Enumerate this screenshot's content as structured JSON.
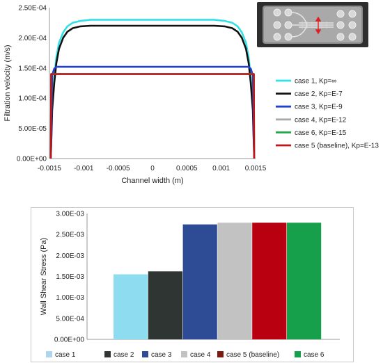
{
  "chart_data": [
    {
      "type": "line",
      "title": "",
      "xlabel": "Channel width (m)",
      "ylabel": "Filtration velocity (m/s)",
      "xlim": [
        -0.0015,
        0.0015
      ],
      "ylim": [
        0,
        0.00025
      ],
      "x_ticks": [
        -0.0015,
        -0.001,
        -0.0005,
        0,
        0.0005,
        0.001,
        0.0015
      ],
      "x_tick_labels": [
        "-0.0015",
        "-0.001",
        "-0.0005",
        "0",
        "0.0005",
        "0.001",
        "0.0015"
      ],
      "y_ticks": [
        0,
        5e-05,
        0.0001,
        0.00015,
        0.0002,
        0.00025
      ],
      "y_tick_labels": [
        "0.00E+00",
        "5.00E-05",
        "1.00E-04",
        "1.50E-04",
        "2.00E-04",
        "2.50E-04"
      ],
      "grid": false,
      "legend_position": "right",
      "series": [
        {
          "name": "case 1, Kp=∞",
          "color": "#33e0e8",
          "x": [
            -0.00148,
            -0.00146,
            -0.00143,
            -0.0014,
            -0.00136,
            -0.0013,
            -0.00124,
            -0.00116,
            -0.00105,
            -0.0009,
            -0.0006,
            0,
            0.0006,
            0.0009,
            0.00105,
            0.00116,
            0.00124,
            0.0013,
            0.00136,
            0.0014,
            0.00143,
            0.00146,
            0.00148
          ],
          "y": [
            0,
            9e-05,
            0.000135,
            0.000168,
            0.000192,
            0.000209,
            0.000219,
            0.000225,
            0.000228,
            0.00023,
            0.00023,
            0.00023,
            0.00023,
            0.00023,
            0.000228,
            0.000225,
            0.000219,
            0.000209,
            0.000192,
            0.000168,
            0.000135,
            9e-05,
            0
          ]
        },
        {
          "name": "case 2, Kp=E-7",
          "color": "#111111",
          "x": [
            -0.00148,
            -0.00146,
            -0.00143,
            -0.0014,
            -0.00136,
            -0.0013,
            -0.00124,
            -0.00116,
            -0.00105,
            -0.0009,
            -0.0006,
            0,
            0.0006,
            0.0009,
            0.00105,
            0.00116,
            0.00124,
            0.0013,
            0.00136,
            0.0014,
            0.00143,
            0.00146,
            0.00148
          ],
          "y": [
            0,
            8e-05,
            0.000125,
            0.000158,
            0.000182,
            0.0002,
            0.00021,
            0.000216,
            0.000219,
            0.00022,
            0.00022,
            0.00022,
            0.00022,
            0.00022,
            0.000219,
            0.000216,
            0.00021,
            0.0002,
            0.000182,
            0.000158,
            0.000125,
            8e-05,
            0
          ]
        },
        {
          "name": "case 3, Kp=E-9",
          "color": "#2340c8",
          "x": [
            -0.00148,
            -0.00146,
            -0.00143,
            -0.0014,
            0,
            0.0014,
            0.00143,
            0.00146,
            0.00148
          ],
          "y": [
            0,
            0.000138,
            0.000149,
            0.000152,
            0.000152,
            0.000152,
            0.000149,
            0.000138,
            0
          ]
        },
        {
          "name": "case 4, Kp=E-12",
          "color": "#aaaaaa",
          "x": [
            -0.00148,
            -0.001475,
            0,
            0.001475,
            0.00148
          ],
          "y": [
            0,
            0.00014,
            0.00014,
            0.00014,
            0
          ]
        },
        {
          "name": "case 6, Kp=E-15",
          "color": "#1faa4a",
          "x": [
            -0.00148,
            -0.001475,
            0,
            0.001475,
            0.00148
          ],
          "y": [
            0,
            0.00014,
            0.00014,
            0.00014,
            0
          ]
        },
        {
          "name": "case 5 (baseline), Kp=E-13",
          "color": "#c0141c",
          "x": [
            -0.00148,
            -0.001475,
            0,
            0.001475,
            0.00148
          ],
          "y": [
            0,
            0.00014,
            0.00014,
            0.00014,
            0
          ]
        }
      ]
    },
    {
      "type": "bar",
      "title": "",
      "xlabel": "",
      "ylabel": "Wall Shear Stress (Pa)",
      "ylim": [
        0,
        0.003
      ],
      "y_ticks": [
        0,
        0.0005,
        0.001,
        0.0015,
        0.002,
        0.0025,
        0.003
      ],
      "y_tick_labels": [
        "0.00E+00",
        "5.00E-04",
        "1.00E-03",
        "1.50E-03",
        "2.00E-03",
        "2.50E-03",
        "3.00E-03"
      ],
      "categories": [
        "case 1",
        "case 2",
        "case 3",
        "case 4",
        "case 5 (baseline)",
        "case 6"
      ],
      "values": [
        0.00155,
        0.00162,
        0.00274,
        0.00278,
        0.00278,
        0.00278
      ],
      "colors": [
        "#8ddcef",
        "#2f3532",
        "#2e4c96",
        "#c2c2c2",
        "#b80010",
        "#16a04c"
      ],
      "legend_colors": [
        "#aed4ee",
        "#2f3532",
        "#2e4c96",
        "#c2c2c2",
        "#7a1a10",
        "#16a04c"
      ],
      "legend_position": "bottom",
      "grid": false
    }
  ]
}
